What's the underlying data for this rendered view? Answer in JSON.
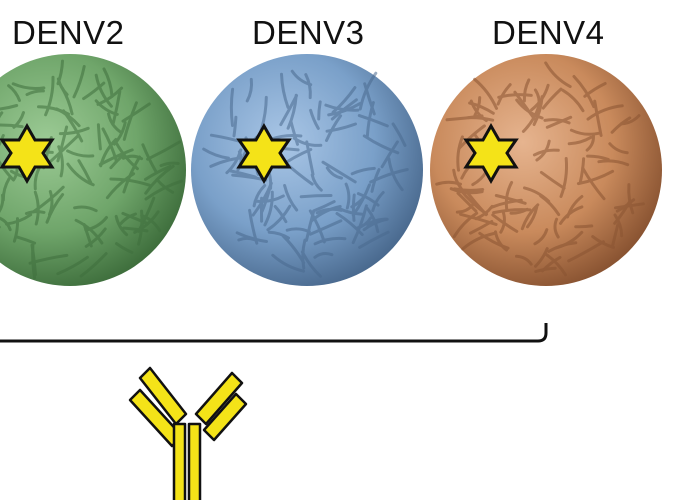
{
  "labels": {
    "denv2": "DENV2",
    "denv3": "DENV3",
    "denv4": "DENV4"
  },
  "virions": [
    {
      "name": "DENV2",
      "color": "#6fa56a",
      "shade": "#4f8a4d"
    },
    {
      "name": "DENV3",
      "color": "#7aa0c9",
      "shade": "#56799f"
    },
    {
      "name": "DENV4",
      "color": "#c98a5c",
      "shade": "#9c6440"
    }
  ],
  "epitope_color": "#f4e318",
  "antibody_color": "#f4e318"
}
